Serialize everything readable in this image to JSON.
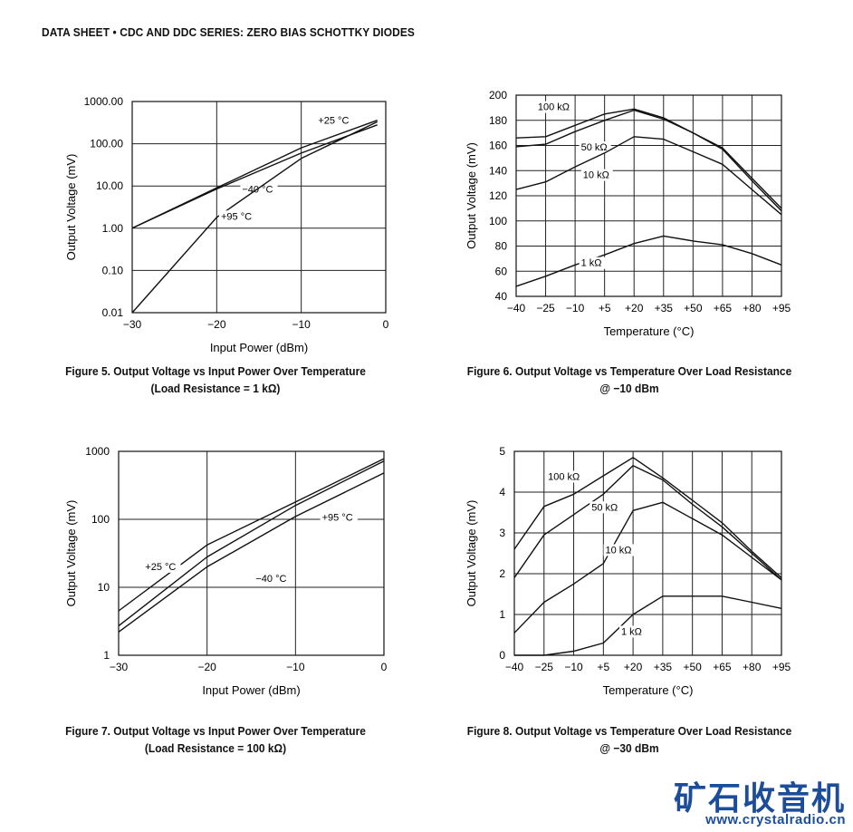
{
  "header": "DATA SHEET  •  CDC AND DDC SERIES: ZERO BIAS SCHOTTKY DIODES",
  "watermark": {
    "chinese": "矿石收音机",
    "url": "www.crystalradio.cn"
  },
  "figures": [
    {
      "caption_line1": "Figure 5. Output Voltage vs Input Power Over Temperature",
      "caption_line2": "(Load Resistance = 1 kΩ)"
    },
    {
      "caption_line1": "Figure 6. Output Voltage vs Temperature Over Load Resistance",
      "caption_line2": "@ −10 dBm"
    },
    {
      "caption_line1": "Figure 7. Output Voltage vs Input Power Over Temperature",
      "caption_line2": "(Load Resistance = 100 kΩ)"
    },
    {
      "caption_line1": "Figure 8. Output Voltage vs Temperature Over Load Resistance",
      "caption_line2": "@ −30 dBm"
    }
  ],
  "chart_data": [
    {
      "type": "line",
      "scale_y": "log",
      "xlabel": "Input Power (dBm)",
      "ylabel": "Output Voltage (mV)",
      "xlim": [
        -30,
        0
      ],
      "ylim": [
        0.01,
        1000
      ],
      "x_ticks": [
        "−30",
        "−20",
        "−10",
        "0"
      ],
      "y_ticks": [
        "0.01",
        "0.10",
        "1.00",
        "10.00",
        "100.00",
        "1000.00"
      ],
      "grid": true,
      "series": [
        {
          "name": "+25 °C",
          "label_at": [
            -8,
            300
          ],
          "x": [
            -30,
            -20,
            -10,
            -1
          ],
          "y": [
            1.0,
            9.0,
            80,
            360
          ]
        },
        {
          "name": "−40 °C",
          "label_at": [
            -17,
            7
          ],
          "x": [
            -30,
            -20,
            -10,
            -1
          ],
          "y": [
            1.0,
            8.5,
            60,
            280
          ]
        },
        {
          "name": "+95 °C",
          "label_at": [
            -19.5,
            1.6
          ],
          "x": [
            -30,
            -20,
            -10,
            -1
          ],
          "y": [
            0.01,
            1.8,
            45,
            330
          ]
        }
      ]
    },
    {
      "type": "line",
      "xlabel": "Temperature (°C)",
      "ylabel": "Output Voltage (mV)",
      "xlim": [
        -40,
        95
      ],
      "ylim": [
        40,
        200
      ],
      "x_ticks": [
        "−40",
        "−25",
        "−10",
        "+5",
        "+20",
        "+35",
        "+50",
        "+65",
        "+80",
        "+95"
      ],
      "y_ticks": [
        "40",
        "60",
        "80",
        "100",
        "120",
        "140",
        "160",
        "180",
        "200"
      ],
      "grid": true,
      "series": [
        {
          "name": "100 kΩ",
          "label_at": [
            -29,
            188
          ],
          "x": [
            -40,
            -25,
            -10,
            5,
            20,
            35,
            50,
            65,
            80,
            95
          ],
          "y": [
            166,
            167,
            176,
            185,
            189,
            182,
            170,
            158,
            134,
            110
          ]
        },
        {
          "name": "50 kΩ",
          "label_at": [
            -7,
            156
          ],
          "x": [
            -40,
            -25,
            -10,
            5,
            20,
            35,
            50,
            65,
            80,
            95
          ],
          "y": [
            159,
            161,
            171,
            180,
            188,
            181,
            170,
            157,
            132,
            108
          ]
        },
        {
          "name": "10 kΩ",
          "label_at": [
            -6,
            134
          ],
          "x": [
            -40,
            -25,
            -10,
            5,
            20,
            35,
            50,
            65,
            80,
            95
          ],
          "y": [
            125,
            131,
            143,
            154,
            167,
            165,
            155,
            145,
            125,
            105
          ]
        },
        {
          "name": "1 kΩ",
          "label_at": [
            -7,
            64
          ],
          "x": [
            -40,
            -25,
            -10,
            5,
            20,
            35,
            50,
            65,
            80,
            95
          ],
          "y": [
            48,
            56,
            65,
            73,
            82,
            88,
            84,
            81,
            74,
            65
          ]
        }
      ]
    },
    {
      "type": "line",
      "scale_y": "log",
      "xlabel": "Input Power (dBm)",
      "ylabel": "Output Voltage (mV)",
      "xlim": [
        -30,
        0
      ],
      "ylim": [
        1,
        1000
      ],
      "x_ticks": [
        "−30",
        "−20",
        "−10",
        "0"
      ],
      "y_ticks": [
        "1",
        "10",
        "100",
        "1000"
      ],
      "grid": true,
      "series": [
        {
          "name": "+25 °C",
          "label_at": [
            -27,
            18
          ],
          "x": [
            -30,
            -20,
            -10,
            0
          ],
          "y": [
            4.5,
            42,
            180,
            780
          ]
        },
        {
          "name": "−40 °C",
          "label_at": [
            -14.5,
            12
          ],
          "x": [
            -30,
            -20,
            -10,
            0
          ],
          "y": [
            2.7,
            28,
            160,
            720
          ]
        },
        {
          "name": "+95 °C",
          "label_at": [
            -7,
            95
          ],
          "x": [
            -30,
            -20,
            -10,
            0
          ],
          "y": [
            2.2,
            20,
            110,
            480
          ]
        }
      ]
    },
    {
      "type": "line",
      "xlabel": "Temperature (°C)",
      "ylabel": "Output Voltage (mV)",
      "xlim": [
        -40,
        95
      ],
      "ylim": [
        0,
        5
      ],
      "x_ticks": [
        "−40",
        "−25",
        "−10",
        "+5",
        "+20",
        "+35",
        "+50",
        "+65",
        "+80",
        "+95"
      ],
      "y_ticks": [
        "0",
        "1",
        "2",
        "3",
        "4",
        "5"
      ],
      "grid": true,
      "series": [
        {
          "name": "100 kΩ",
          "label_at": [
            -23,
            4.3
          ],
          "x": [
            -40,
            -25,
            -10,
            5,
            20,
            35,
            50,
            65,
            80,
            95
          ],
          "y": [
            2.6,
            3.65,
            3.95,
            4.4,
            4.85,
            4.35,
            3.8,
            3.25,
            2.55,
            1.9
          ]
        },
        {
          "name": "50 kΩ",
          "label_at": [
            -1,
            3.55
          ],
          "x": [
            -40,
            -25,
            -10,
            5,
            20,
            35,
            50,
            65,
            80,
            95
          ],
          "y": [
            1.9,
            2.95,
            3.45,
            3.95,
            4.65,
            4.3,
            3.7,
            3.15,
            2.5,
            1.85
          ]
        },
        {
          "name": "10 kΩ",
          "label_at": [
            6,
            2.5
          ],
          "x": [
            -40,
            -25,
            -10,
            5,
            20,
            35,
            50,
            65,
            80,
            95
          ],
          "y": [
            0.55,
            1.3,
            1.75,
            2.25,
            3.55,
            3.75,
            3.35,
            2.95,
            2.4,
            1.85
          ]
        },
        {
          "name": "1 kΩ",
          "label_at": [
            14,
            0.5
          ],
          "x": [
            -40,
            -25,
            -10,
            5,
            20,
            35,
            50,
            65,
            80,
            95
          ],
          "y": [
            0,
            0,
            0.1,
            0.3,
            1.0,
            1.45,
            1.45,
            1.45,
            1.3,
            1.15
          ]
        }
      ]
    }
  ]
}
